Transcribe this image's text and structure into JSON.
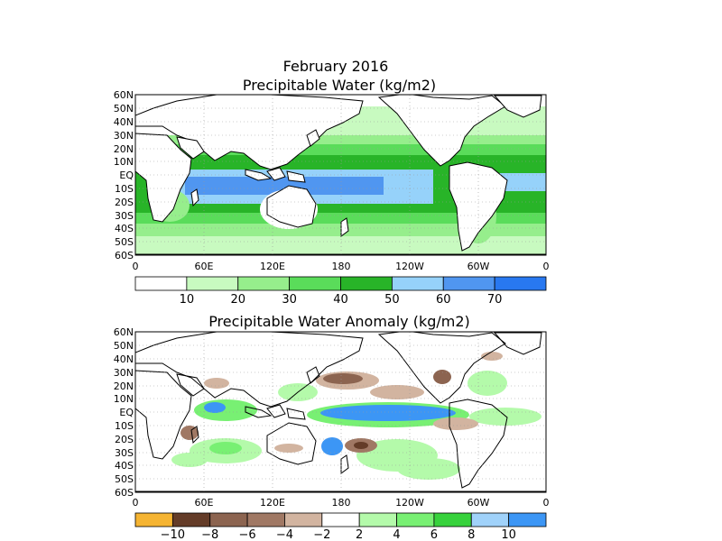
{
  "figure": {
    "title": "February 2016",
    "panel1_title": "Precipitable Water (kg/m2)",
    "panel2_title": "Precipitable Water Anomaly (kg/m2)"
  },
  "axes": {
    "lat_labels": [
      "60N",
      "50N",
      "40N",
      "30N",
      "20N",
      "10N",
      "EQ",
      "10S",
      "20S",
      "30S",
      "40S",
      "50S",
      "60S"
    ],
    "lon_labels": [
      "0",
      "60E",
      "120E",
      "180",
      "120W",
      "60W",
      "0"
    ]
  },
  "colorbars": {
    "total": {
      "labels": [
        "10",
        "20",
        "30",
        "40",
        "50",
        "60",
        "70"
      ],
      "colors": [
        "#ffffff",
        "#c8fac0",
        "#96ee8c",
        "#5adc5a",
        "#28b428",
        "#96d2fa",
        "#5096f0",
        "#2878f0"
      ]
    },
    "anomaly": {
      "labels": [
        "-10",
        "-8",
        "-6",
        "-4",
        "-2",
        "2",
        "4",
        "6",
        "8",
        "10"
      ],
      "colors": [
        "#f5b432",
        "#643c28",
        "#8c6450",
        "#a07864",
        "#d2b4a0",
        "#ffffff",
        "#b4faaa",
        "#78f073",
        "#37d23c",
        "#a0d2fa",
        "#3c96f5"
      ]
    }
  },
  "colors": {
    "land_outline": "#000000",
    "ocean_base": "#ffffff",
    "grid": "#999999"
  }
}
